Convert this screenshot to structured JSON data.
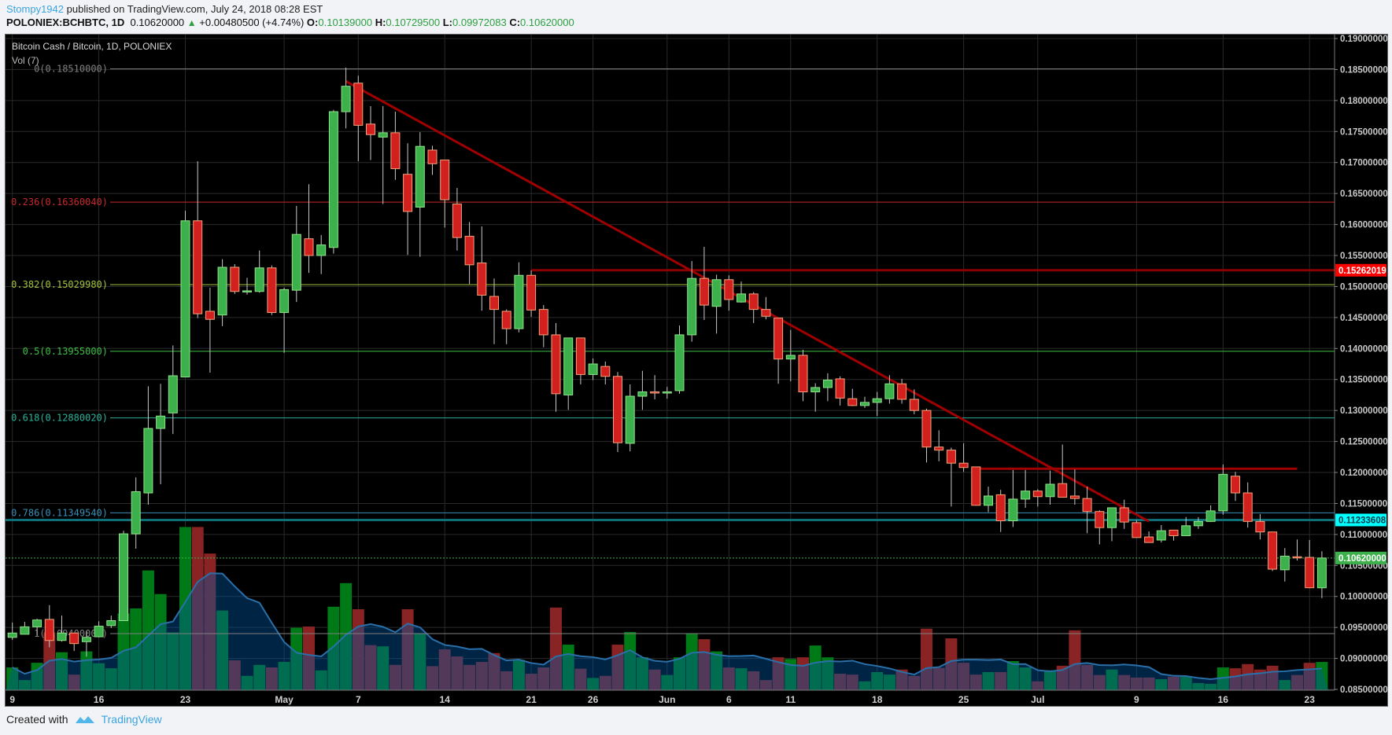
{
  "header": {
    "publisher": "Stompy1942",
    "published_text": "published on TradingView.com, July 24, 2018 08:28 EST",
    "symbol": "POLONIEX:BCHBTC, 1D",
    "last": "0.10620000",
    "change": "+0.00480500 (+4.74%)",
    "o_label": "O:",
    "o": "0.10139000",
    "h_label": "H:",
    "h": "0.10729500",
    "l_label": "L:",
    "l": "0.09972083",
    "c_label": "C:",
    "c": "0.10620000"
  },
  "footer": {
    "created_with": "Created with",
    "brand": "TradingView",
    "icon": "tradingview-logo-icon"
  },
  "chart_data": {
    "type": "candlestick",
    "title": "Bitcoin Cash / Bitcoin, 1D, POLONIEX",
    "volume_label": "Vol (7)",
    "ylim": [
      0.085,
      0.19
    ],
    "y_ticks": [
      "0.19000000",
      "0.18500000",
      "0.18000000",
      "0.17500000",
      "0.17000000",
      "0.16500000",
      "0.16000000",
      "0.15500000",
      "0.15000000",
      "0.14500000",
      "0.14000000",
      "0.13500000",
      "0.13000000",
      "0.12500000",
      "0.12000000",
      "0.11500000",
      "0.11000000",
      "0.10500000",
      "0.10000000",
      "0.09500000",
      "0.09000000",
      "0.08500000"
    ],
    "x_ticks": [
      {
        "date": "Apr 9",
        "label": "9"
      },
      {
        "date": "Apr 16",
        "label": "16"
      },
      {
        "date": "Apr 23",
        "label": "23"
      },
      {
        "date": "May 1",
        "label": "May"
      },
      {
        "date": "May 7",
        "label": "7"
      },
      {
        "date": "May 14",
        "label": "14"
      },
      {
        "date": "May 21",
        "label": "21"
      },
      {
        "date": "May 26",
        "label": "26"
      },
      {
        "date": "Jun 1",
        "label": "Jun"
      },
      {
        "date": "Jun 6",
        "label": "6"
      },
      {
        "date": "Jun 11",
        "label": "11"
      },
      {
        "date": "Jun 18",
        "label": "18"
      },
      {
        "date": "Jun 25",
        "label": "25"
      },
      {
        "date": "Jul 1",
        "label": "Jul"
      },
      {
        "date": "Jul 9",
        "label": "9"
      },
      {
        "date": "Jul 16",
        "label": "16"
      },
      {
        "date": "Jul 23",
        "label": "23"
      }
    ],
    "grid": true,
    "colors": {
      "up": "#3cb04a",
      "up_border": "#8fe38a",
      "down": "#d2201f",
      "down_border": "#f5a27a",
      "vol_up": "#007a17",
      "vol_down": "#8a2424",
      "vol_ma": "#2a6fa8",
      "trendline": "#a00000"
    },
    "columns": [
      "date",
      "open",
      "high",
      "low",
      "close",
      "relative_volume"
    ],
    "candles": [
      [
        "Apr 9",
        0.0934,
        0.0958,
        0.093,
        0.0941,
        54
      ],
      [
        "Apr 10",
        0.0939,
        0.0959,
        0.0939,
        0.0951,
        24
      ],
      [
        "Apr 11",
        0.0951,
        0.0964,
        0.0937,
        0.0962,
        65
      ],
      [
        "Apr 12",
        0.0963,
        0.0986,
        0.0918,
        0.0929,
        137
      ],
      [
        "Apr 13",
        0.0929,
        0.0969,
        0.0927,
        0.0941,
        90
      ],
      [
        "Apr 14",
        0.0941,
        0.0941,
        0.0912,
        0.0924,
        37
      ],
      [
        "Apr 15",
        0.0927,
        0.0944,
        0.0903,
        0.0934,
        92
      ],
      [
        "Apr 16",
        0.0935,
        0.096,
        0.0934,
        0.0952,
        64
      ],
      [
        "Apr 17",
        0.0953,
        0.0969,
        0.0949,
        0.0961,
        52
      ],
      [
        "Apr 18",
        0.0961,
        0.1106,
        0.0961,
        0.1101,
        182
      ],
      [
        "Apr 19",
        0.1101,
        0.1192,
        0.1077,
        0.1169,
        194
      ],
      [
        "Apr 20",
        0.1167,
        0.1339,
        0.1148,
        0.1271,
        284
      ],
      [
        "Apr 21",
        0.1271,
        0.1343,
        0.1181,
        0.1291,
        228
      ],
      [
        "Apr 22",
        0.1296,
        0.1405,
        0.1262,
        0.1356,
        137
      ],
      [
        "Apr 23",
        0.1354,
        0.1622,
        0.1354,
        0.1606,
        387
      ],
      [
        "Apr 24",
        0.1606,
        0.1702,
        0.1449,
        0.1456,
        387
      ],
      [
        "Apr 25",
        0.146,
        0.1498,
        0.1361,
        0.1447,
        324
      ],
      [
        "Apr 26",
        0.1454,
        0.1544,
        0.1436,
        0.1531,
        189
      ],
      [
        "Apr 27",
        0.1531,
        0.1536,
        0.1488,
        0.1492,
        71
      ],
      [
        "Apr 28",
        0.1492,
        0.1514,
        0.1487,
        0.1493,
        34
      ],
      [
        "Apr 29",
        0.1492,
        0.1558,
        0.149,
        0.153,
        60
      ],
      [
        "Apr 30",
        0.153,
        0.1534,
        0.1454,
        0.1458,
        54
      ],
      [
        "May 1",
        0.1458,
        0.1498,
        0.1393,
        0.1495,
        67
      ],
      [
        "May 2",
        0.1494,
        0.163,
        0.1475,
        0.1584,
        148
      ],
      [
        "May 3",
        0.1577,
        0.1665,
        0.1522,
        0.155,
        151
      ],
      [
        "May 4",
        0.155,
        0.1583,
        0.152,
        0.1567,
        47
      ],
      [
        "May 5",
        0.1563,
        0.1785,
        0.1553,
        0.1782,
        198
      ],
      [
        "May 6",
        0.1782,
        0.1853,
        0.1755,
        0.1823,
        254
      ],
      [
        "May 7",
        0.1828,
        0.184,
        0.1702,
        0.176,
        192
      ],
      [
        "May 8",
        0.1762,
        0.1791,
        0.1704,
        0.1745,
        107
      ],
      [
        "May 9",
        0.1741,
        0.1791,
        0.1633,
        0.1748,
        104
      ],
      [
        "May 10",
        0.1748,
        0.1782,
        0.1672,
        0.169,
        60
      ],
      [
        "May 11",
        0.1681,
        0.1731,
        0.1551,
        0.1621,
        192
      ],
      [
        "May 12",
        0.1628,
        0.1749,
        0.1548,
        0.1726,
        134
      ],
      [
        "May 13",
        0.172,
        0.1727,
        0.168,
        0.1698,
        57
      ],
      [
        "May 14",
        0.1704,
        0.1704,
        0.1595,
        0.164,
        97
      ],
      [
        "May 15",
        0.1633,
        0.1659,
        0.1558,
        0.1579,
        80
      ],
      [
        "May 16",
        0.1581,
        0.1604,
        0.1504,
        0.1535,
        60
      ],
      [
        "May 17",
        0.1538,
        0.1597,
        0.1461,
        0.1486,
        67
      ],
      [
        "May 18",
        0.1484,
        0.1513,
        0.1407,
        0.1463,
        88
      ],
      [
        "May 19",
        0.146,
        0.1463,
        0.1407,
        0.1432,
        45
      ],
      [
        "May 20",
        0.1432,
        0.1539,
        0.1426,
        0.1518,
        72
      ],
      [
        "May 21",
        0.1518,
        0.1526,
        0.1451,
        0.1462,
        39
      ],
      [
        "May 22",
        0.1463,
        0.147,
        0.1402,
        0.1422,
        54
      ],
      [
        "May 23",
        0.1422,
        0.1441,
        0.1298,
        0.1327,
        196
      ],
      [
        "May 24",
        0.1325,
        0.1417,
        0.1301,
        0.1417,
        108
      ],
      [
        "May 25",
        0.1417,
        0.1417,
        0.1342,
        0.1358,
        51
      ],
      [
        "May 26",
        0.1358,
        0.1384,
        0.1349,
        0.1375,
        29
      ],
      [
        "May 27",
        0.1371,
        0.1379,
        0.1342,
        0.1355,
        34
      ],
      [
        "May 28",
        0.1355,
        0.1362,
        0.1233,
        0.1248,
        108
      ],
      [
        "May 29",
        0.1247,
        0.1342,
        0.1234,
        0.1323,
        138
      ],
      [
        "May 30",
        0.1323,
        0.1364,
        0.1301,
        0.133,
        78
      ],
      [
        "May 31",
        0.133,
        0.1357,
        0.1318,
        0.1329,
        49
      ],
      [
        "Jun 1",
        0.1329,
        0.1338,
        0.1319,
        0.133,
        36
      ],
      [
        "Jun 2",
        0.1332,
        0.1437,
        0.1327,
        0.1422,
        78
      ],
      [
        "Jun 3",
        0.1422,
        0.1541,
        0.1411,
        0.1513,
        134
      ],
      [
        "Jun 4",
        0.1513,
        0.1564,
        0.1446,
        0.147,
        121
      ],
      [
        "Jun 5",
        0.1468,
        0.1519,
        0.1424,
        0.1511,
        92
      ],
      [
        "Jun 6",
        0.1511,
        0.1518,
        0.1461,
        0.1479,
        54
      ],
      [
        "Jun 7",
        0.1475,
        0.1508,
        0.1474,
        0.1488,
        52
      ],
      [
        "Jun 8",
        0.1488,
        0.1491,
        0.1441,
        0.1463,
        45
      ],
      [
        "Jun 9",
        0.1463,
        0.1483,
        0.1447,
        0.1452,
        24
      ],
      [
        "Jun 10",
        0.1449,
        0.1449,
        0.1343,
        0.1383,
        78
      ],
      [
        "Jun 11",
        0.1383,
        0.143,
        0.1347,
        0.1389,
        74
      ],
      [
        "Jun 12",
        0.1389,
        0.1398,
        0.1315,
        0.133,
        78
      ],
      [
        "Jun 13",
        0.133,
        0.1344,
        0.1298,
        0.1337,
        106
      ],
      [
        "Jun 14",
        0.1337,
        0.136,
        0.1315,
        0.1349,
        78
      ],
      [
        "Jun 15",
        0.1351,
        0.1355,
        0.1308,
        0.132,
        39
      ],
      [
        "Jun 16",
        0.1319,
        0.1335,
        0.1307,
        0.1308,
        37
      ],
      [
        "Jun 17",
        0.1308,
        0.1322,
        0.1304,
        0.1313,
        21
      ],
      [
        "Jun 18",
        0.1313,
        0.133,
        0.1291,
        0.1319,
        43
      ],
      [
        "Jun 19",
        0.1319,
        0.1357,
        0.1311,
        0.1343,
        37
      ],
      [
        "Jun 20",
        0.1343,
        0.1351,
        0.1311,
        0.1318,
        49
      ],
      [
        "Jun 21",
        0.1318,
        0.1334,
        0.1294,
        0.13,
        34
      ],
      [
        "Jun 22",
        0.13,
        0.1303,
        0.1216,
        0.1241,
        146
      ],
      [
        "Jun 23",
        0.1241,
        0.1268,
        0.1218,
        0.1236,
        53
      ],
      [
        "Jun 24",
        0.1236,
        0.124,
        0.1145,
        0.1215,
        123
      ],
      [
        "Jun 25",
        0.1215,
        0.1247,
        0.1201,
        0.1208,
        65
      ],
      [
        "Jun 26",
        0.1209,
        0.1209,
        0.1147,
        0.1147,
        37
      ],
      [
        "Jun 27",
        0.1147,
        0.1177,
        0.1136,
        0.1162,
        43
      ],
      [
        "Jun 28",
        0.1164,
        0.1172,
        0.1104,
        0.1122,
        43
      ],
      [
        "Jun 29",
        0.1122,
        0.1204,
        0.1112,
        0.1157,
        69
      ],
      [
        "Jun 30",
        0.1157,
        0.1204,
        0.1143,
        0.117,
        54
      ],
      [
        "Jul 1",
        0.117,
        0.1173,
        0.1145,
        0.1161,
        21
      ],
      [
        "Jul 2",
        0.1161,
        0.1203,
        0.1148,
        0.1181,
        47
      ],
      [
        "Jul 3",
        0.1182,
        0.1245,
        0.116,
        0.116,
        58
      ],
      [
        "Jul 4",
        0.1162,
        0.1205,
        0.1148,
        0.1158,
        142
      ],
      [
        "Jul 5",
        0.1158,
        0.1177,
        0.1102,
        0.1137,
        60
      ],
      [
        "Jul 6",
        0.1137,
        0.1139,
        0.1084,
        0.1111,
        36
      ],
      [
        "Jul 7",
        0.1111,
        0.1143,
        0.1089,
        0.1143,
        49
      ],
      [
        "Jul 8",
        0.1143,
        0.1156,
        0.1109,
        0.112,
        36
      ],
      [
        "Jul 9",
        0.1119,
        0.1123,
        0.1095,
        0.1095,
        30
      ],
      [
        "Jul 10",
        0.1096,
        0.1105,
        0.1087,
        0.1087,
        30
      ],
      [
        "Jul 11",
        0.1091,
        0.1115,
        0.1087,
        0.1106,
        26
      ],
      [
        "Jul 12",
        0.1107,
        0.1107,
        0.109,
        0.1098,
        32
      ],
      [
        "Jul 13",
        0.1098,
        0.1128,
        0.1098,
        0.1114,
        32
      ],
      [
        "Jul 14",
        0.1114,
        0.1128,
        0.1109,
        0.1121,
        17
      ],
      [
        "Jul 15",
        0.1121,
        0.1147,
        0.112,
        0.1138,
        15
      ],
      [
        "Jul 16",
        0.1138,
        0.1213,
        0.1132,
        0.1197,
        54
      ],
      [
        "Jul 17",
        0.1194,
        0.1201,
        0.1154,
        0.1167,
        52
      ],
      [
        "Jul 18",
        0.1167,
        0.1184,
        0.1111,
        0.1121,
        62
      ],
      [
        "Jul 19",
        0.1121,
        0.1133,
        0.1092,
        0.1104,
        49
      ],
      [
        "Jul 20",
        0.1104,
        0.1104,
        0.1041,
        0.1044,
        58
      ],
      [
        "Jul 21",
        0.1043,
        0.1078,
        0.1024,
        0.1065,
        24
      ],
      [
        "Jul 22",
        0.1064,
        0.1092,
        0.1058,
        0.1063,
        36
      ],
      [
        "Jul 23",
        0.1063,
        0.1091,
        0.1014,
        0.1014,
        65
      ],
      [
        "Jul 24",
        0.10139,
        0.107295,
        0.09972083,
        0.1062,
        67
      ]
    ],
    "fib_levels": [
      {
        "label": "0(0.18510000)",
        "price": 0.1851,
        "color": "#808080"
      },
      {
        "label": "0.236(0.16360040)",
        "price": 0.1636004,
        "color": "#c8282a"
      },
      {
        "label": "0.382(0.15029980)",
        "price": 0.1502998,
        "color": "#a4c43a"
      },
      {
        "label": "0.5(0.13955000)",
        "price": 0.13955,
        "color": "#3cbf45"
      },
      {
        "label": "0.618(0.12880020)",
        "price": 0.1288002,
        "color": "#2bb39a"
      },
      {
        "label": "0.786(0.11349540)",
        "price": 0.1134954,
        "color": "#3a8fb8"
      },
      {
        "label": "1(0.09400000)",
        "price": 0.094,
        "color": "#808080"
      }
    ],
    "trendline": {
      "from": [
        "May 6",
        0.1831
      ],
      "to": [
        "Jul 10",
        0.1121
      ]
    },
    "horizontal_lines": [
      {
        "from": "May 21",
        "price": 0.15262019,
        "color": "#8b0000"
      },
      {
        "from": "Jun 26",
        "to": "Jul 22",
        "price": 0.1206,
        "color": "#a00000"
      },
      {
        "price": 0.11233608,
        "color": "#0e6f78"
      }
    ],
    "price_badges": [
      {
        "label": "0.15262019",
        "price": 0.15262019,
        "bg": "#ff0000",
        "fg": "#ffffff"
      },
      {
        "label": "0.11233608",
        "price": 0.11233608,
        "bg": "#00ffff",
        "fg": "#0a3a4a"
      },
      {
        "label": "0.10620000",
        "price": 0.1062,
        "bg": "#3cb04a",
        "fg": "#ffffff"
      }
    ],
    "last_price": 0.1062
  }
}
